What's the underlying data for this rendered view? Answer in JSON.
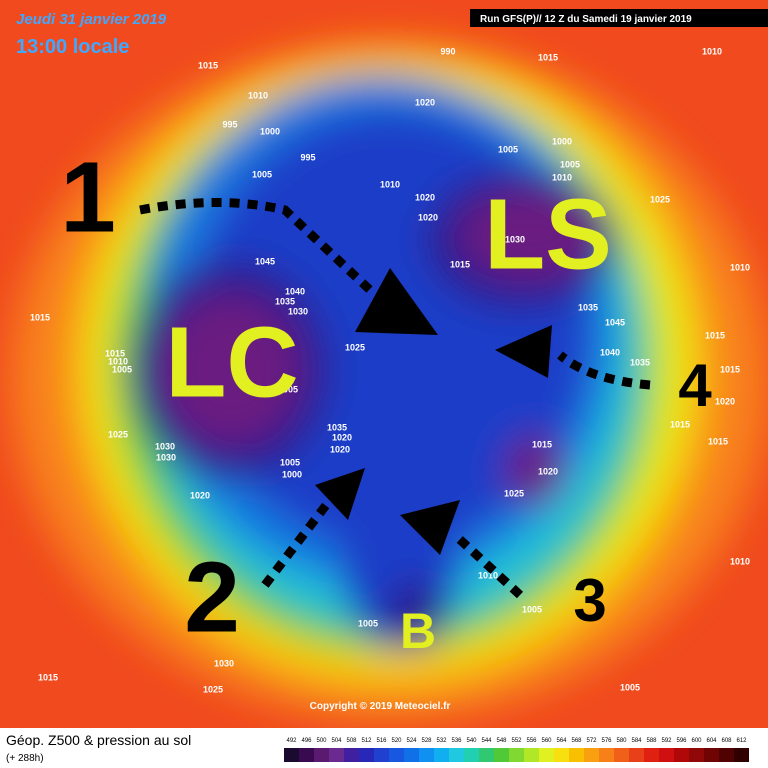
{
  "header": {
    "date": "Jeudi 31 janvier 2019",
    "time": "13:00 locale",
    "run": "Run GFS(P)// 12 Z du Samedi 19 janvier 2019"
  },
  "footer": {
    "title": "Géop. Z500 & pression au sol",
    "lead": "(+ 288h)",
    "copyright": "Copyright © 2019 Meteociel.fr"
  },
  "annotations": {
    "labels": [
      "1",
      "2",
      "3",
      "4"
    ],
    "lc": "LC",
    "ls": "LS",
    "b": "B"
  },
  "scale": [
    492,
    496,
    500,
    504,
    508,
    512,
    516,
    520,
    524,
    528,
    532,
    536,
    540,
    544,
    548,
    552,
    556,
    560,
    564,
    568,
    572,
    576,
    580,
    584,
    588,
    592,
    596,
    600,
    604,
    608,
    612
  ],
  "isobars": [
    "1015",
    "1010",
    "1015",
    "1010",
    "995",
    "1000",
    "1005",
    "995",
    "1020",
    "1005",
    "1000",
    "1005",
    "1010",
    "1025",
    "1010",
    "1020",
    "1020",
    "1030",
    "1015",
    "1045",
    "1040",
    "1035",
    "1030",
    "1015",
    "1015",
    "1010",
    "1005",
    "1025",
    "1035",
    "1045",
    "1040",
    "1035",
    "1010",
    "1015",
    "1015",
    "1020",
    "1015",
    "1015",
    "1005",
    "1035",
    "1025",
    "1030",
    "1030",
    "1020",
    "1020",
    "1005",
    "1000",
    "1015",
    "1020",
    "1025",
    "1020",
    "1010",
    "1005",
    "1005",
    "1030",
    "1015",
    "1025",
    "1005",
    "1010",
    "990"
  ]
}
